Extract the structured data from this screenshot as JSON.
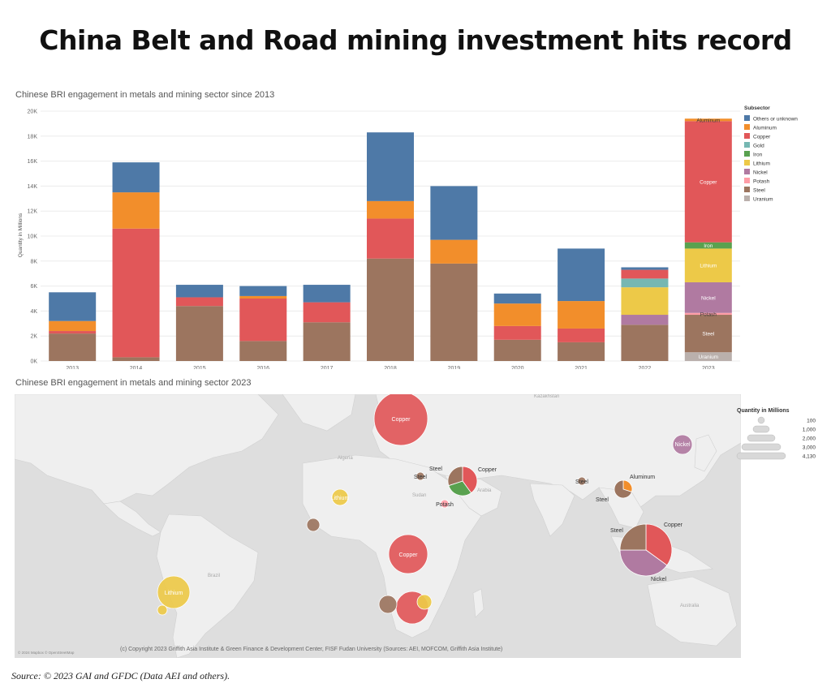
{
  "headline": "China Belt and Road mining investment hits record",
  "source": "Source: © 2023 GAI and GFDC (Data AEI and others).",
  "chart_data": [
    {
      "type": "bar",
      "stacked": true,
      "title": "Chinese BRI engagement in metals and mining sector since 2013",
      "ylabel": "Quantity in Millions",
      "xlabel": "",
      "ylim": [
        0,
        20000
      ],
      "yticks": [
        0,
        2000,
        4000,
        6000,
        8000,
        10000,
        12000,
        14000,
        16000,
        18000,
        20000
      ],
      "ytick_labels": [
        "0K",
        "2K",
        "4K",
        "6K",
        "8K",
        "10K",
        "12K",
        "14K",
        "16K",
        "18K",
        "20K"
      ],
      "legend_title": "Subsector",
      "legend_position": "right",
      "categories": [
        "2013",
        "2014",
        "2015",
        "2016",
        "2017",
        "2018",
        "2019",
        "2020",
        "2021",
        "2022",
        "2023"
      ],
      "series": [
        {
          "name": "Uranium",
          "color": "#bab0ac",
          "values": [
            0,
            0,
            0,
            0,
            0,
            0,
            0,
            0,
            0,
            0,
            700
          ]
        },
        {
          "name": "Steel",
          "color": "#9c755f",
          "values": [
            2200,
            300,
            4400,
            1600,
            3100,
            8200,
            7800,
            1700,
            1500,
            2900,
            3000
          ]
        },
        {
          "name": "Potash",
          "color": "#ff9da7",
          "values": [
            0,
            0,
            0,
            0,
            0,
            0,
            0,
            0,
            0,
            0,
            150
          ]
        },
        {
          "name": "Nickel",
          "color": "#b07aa1",
          "values": [
            0,
            0,
            0,
            0,
            0,
            0,
            0,
            0,
            0,
            800,
            2450
          ]
        },
        {
          "name": "Lithium",
          "color": "#edc948",
          "values": [
            0,
            0,
            0,
            0,
            0,
            0,
            0,
            0,
            0,
            2200,
            2700
          ]
        },
        {
          "name": "Iron",
          "color": "#59a14f",
          "values": [
            0,
            0,
            0,
            0,
            0,
            0,
            0,
            0,
            0,
            0,
            500
          ]
        },
        {
          "name": "Gold",
          "color": "#76b7b2",
          "values": [
            0,
            0,
            0,
            0,
            0,
            0,
            0,
            0,
            0,
            700,
            0
          ]
        },
        {
          "name": "Copper",
          "color": "#e15759",
          "values": [
            200,
            10300,
            700,
            3400,
            1600,
            3200,
            0,
            1100,
            1100,
            700,
            9700
          ]
        },
        {
          "name": "Aluminum",
          "color": "#f28e2b",
          "values": [
            800,
            2900,
            0,
            200,
            0,
            1400,
            1900,
            1800,
            2200,
            0,
            200
          ]
        },
        {
          "name": "Others or unknown",
          "color": "#4e79a7",
          "values": [
            2300,
            2400,
            1000,
            800,
            1400,
            5500,
            4300,
            800,
            4200,
            200,
            0
          ]
        }
      ],
      "legend_order": [
        "Others or unknown",
        "Aluminum",
        "Copper",
        "Gold",
        "Iron",
        "Lithium",
        "Nickel",
        "Potash",
        "Steel",
        "Uranium"
      ],
      "segment_labels": [
        {
          "category": "2023",
          "series": "Aluminum",
          "text": "Aluminum"
        },
        {
          "category": "2023",
          "series": "Copper",
          "text": "Copper"
        },
        {
          "category": "2023",
          "series": "Iron",
          "text": "Iron"
        },
        {
          "category": "2023",
          "series": "Lithium",
          "text": "Lithium"
        },
        {
          "category": "2023",
          "series": "Nickel",
          "text": "Nickel"
        },
        {
          "category": "2023",
          "series": "Potash",
          "text": "Potash"
        },
        {
          "category": "2023",
          "series": "Steel",
          "text": "Steel"
        },
        {
          "category": "2023",
          "series": "Uranium",
          "text": "Uranium"
        }
      ]
    },
    {
      "type": "bubble-map",
      "title": "Chinese BRI engagement in metals and mining sector 2023",
      "size_legend_title": "Quantity in Millions",
      "size_legend_values": [
        "100",
        "1,000",
        "2,000",
        "3,000",
        "4,130"
      ],
      "credit": "(c) Copyright 2023 Griffith Asia Institute & Green Finance & Development Center, FISF Fudan University (Sources: AEI, MOFCOM, Griffith Asia Institute)",
      "map_attribution": "© 2024 Mapbox © OpenStreetMap",
      "map_labels": [
        "Algeria",
        "Sudan",
        "Brazil",
        "Kazakhstan",
        "Arabia",
        "Australia"
      ],
      "bubbles": [
        {
          "label": "Copper",
          "slices": [
            {
              "series": "Copper",
              "color": "#e15759",
              "value": 1
            }
          ]
        },
        {
          "label": "Nickel",
          "slices": [
            {
              "series": "Nickel",
              "color": "#b07aa1",
              "value": 1
            }
          ]
        },
        {
          "label": "Steel",
          "slices": [
            {
              "series": "Steel",
              "color": "#9c755f",
              "value": 1
            }
          ]
        },
        {
          "labels": [
            "Steel",
            "Copper"
          ],
          "slices": [
            {
              "series": "Copper",
              "color": "#e15759",
              "value": 40
            },
            {
              "series": "Iron",
              "color": "#59a14f",
              "value": 30
            },
            {
              "series": "Steel",
              "color": "#9c755f",
              "value": 30
            }
          ]
        },
        {
          "label": "Potash",
          "slices": [
            {
              "series": "Potash",
              "color": "#ff9da7",
              "value": 1
            }
          ]
        },
        {
          "label": "Lithium",
          "slices": [
            {
              "series": "Lithium",
              "color": "#edc948",
              "value": 1
            }
          ]
        },
        {
          "label": "Steel",
          "slices": [
            {
              "series": "Steel",
              "color": "#9c755f",
              "value": 1
            }
          ]
        },
        {
          "labels": [
            "Aluminum",
            "Steel"
          ],
          "slices": [
            {
              "series": "Aluminum",
              "color": "#f28e2b",
              "value": 30
            },
            {
              "series": "Steel",
              "color": "#9c755f",
              "value": 70
            }
          ]
        },
        {
          "labels": [
            "Steel",
            "Copper",
            "Nickel"
          ],
          "slices": [
            {
              "series": "Copper",
              "color": "#e15759",
              "value": 35
            },
            {
              "series": "Nickel",
              "color": "#b07aa1",
              "value": 40
            },
            {
              "series": "Steel",
              "color": "#9c755f",
              "value": 25
            }
          ]
        },
        {
          "label": "Copper",
          "slices": [
            {
              "series": "Copper",
              "color": "#e15759",
              "value": 1
            }
          ]
        },
        {
          "label": "Lithium",
          "slices": [
            {
              "series": "Lithium",
              "color": "#edc948",
              "value": 1
            }
          ]
        },
        {
          "label": "",
          "slices": [
            {
              "series": "Copper",
              "color": "#e15759",
              "value": 1
            }
          ]
        },
        {
          "label": "",
          "slices": [
            {
              "series": "Steel",
              "color": "#9c755f",
              "value": 1
            }
          ]
        },
        {
          "label": "",
          "slices": [
            {
              "series": "Lithium",
              "color": "#edc948",
              "value": 1
            }
          ]
        },
        {
          "label": "",
          "slices": [
            {
              "series": "Lithium",
              "color": "#edc948",
              "value": 1
            }
          ]
        },
        {
          "label": "",
          "slices": [
            {
              "series": "Steel",
              "color": "#9c755f",
              "value": 1
            }
          ]
        }
      ]
    }
  ]
}
